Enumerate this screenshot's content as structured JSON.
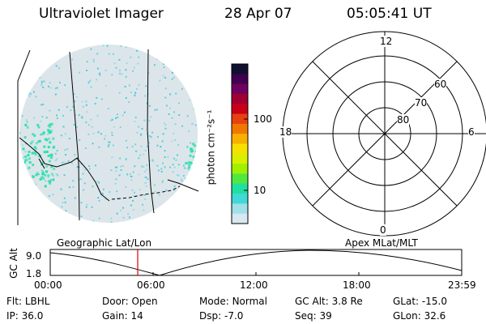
{
  "header": {
    "instrument": "Ultraviolet Imager",
    "date": "28 Apr 07",
    "time": "05:05:41 UT"
  },
  "colorbar": {
    "unit_label": "photon cm⁻²s⁻¹",
    "ticks": [
      "100",
      "10"
    ],
    "colors": [
      "#101030",
      "#400050",
      "#700060",
      "#a00030",
      "#c80018",
      "#e84010",
      "#f07800",
      "#f8b000",
      "#f8e000",
      "#d8f000",
      "#a0f000",
      "#50e840",
      "#20e0a0",
      "#40d8d8",
      "#a0e0e8",
      "#d8e8f0"
    ]
  },
  "image_panel": {
    "title": "Geographic Lat/Lon",
    "fill_color": "#dce6ea",
    "speckle_color": "#39c6d8",
    "bright_color": "#22e0a8"
  },
  "polar_panel": {
    "title": "Apex MLat/MLT",
    "mlt_labels": {
      "top": "12",
      "left": "18",
      "right": "6",
      "bottom": "0"
    },
    "lat_labels": [
      "60",
      "70",
      "80"
    ]
  },
  "altitude_plot": {
    "ylabel": "GC Alt",
    "yticks": [
      "9.0",
      "1.8"
    ],
    "xticks": [
      "00:00",
      "06:00",
      "12:00",
      "18:00",
      "23:59"
    ],
    "marker_color": "#e00000"
  },
  "info": {
    "row1": [
      {
        "label": "Flt:",
        "value": "LBHL"
      },
      {
        "label": "Door:",
        "value": "Open"
      },
      {
        "label": "Mode:",
        "value": "Normal"
      },
      {
        "label": "GC Alt:",
        "value": "3.8 Re"
      },
      {
        "label": "GLat:",
        "value": "-15.0"
      }
    ],
    "row2": [
      {
        "label": "IP:",
        "value": "36.0"
      },
      {
        "label": "Gain:",
        "value": "14"
      },
      {
        "label": "Dsp:",
        "value": "-7.0"
      },
      {
        "label": "Seq:",
        "value": "39"
      },
      {
        "label": "GLon:",
        "value": "32.6"
      }
    ]
  }
}
